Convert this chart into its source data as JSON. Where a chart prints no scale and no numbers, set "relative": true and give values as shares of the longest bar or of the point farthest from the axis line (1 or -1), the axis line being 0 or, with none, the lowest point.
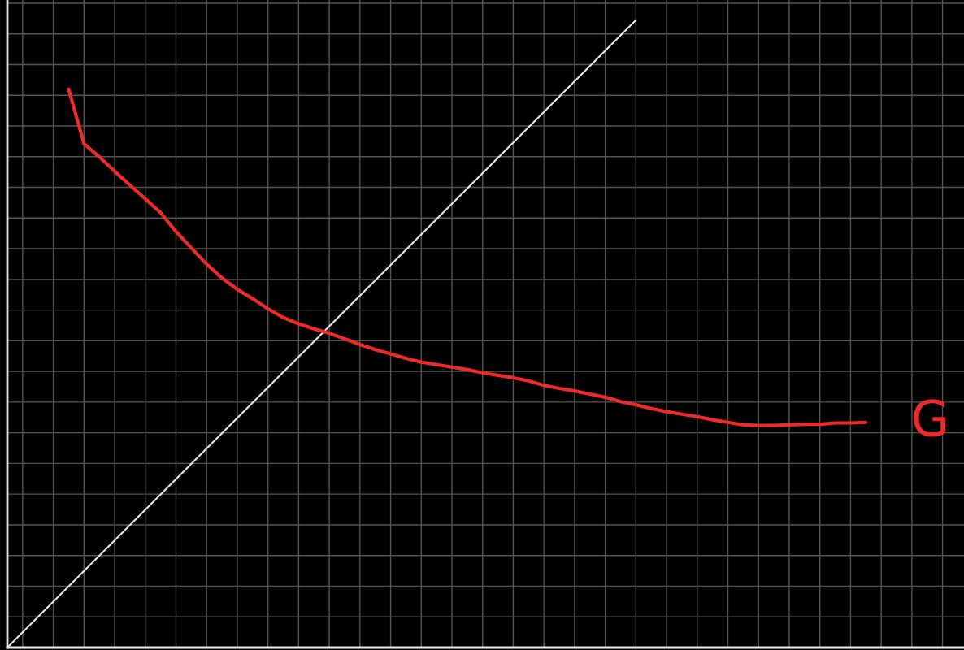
{
  "chart_data": {
    "type": "line",
    "relative": true,
    "grid": true,
    "tick_labels": false,
    "categories": [
      null,
      null,
      null,
      null,
      null,
      null,
      null,
      null,
      null,
      null,
      null,
      null,
      null,
      null,
      null,
      null,
      null,
      null,
      null,
      null,
      null,
      null,
      null,
      null,
      null,
      null,
      null,
      null,
      null,
      null,
      null,
      null,
      null,
      null,
      null,
      null,
      null,
      null,
      null,
      null,
      null,
      null,
      null,
      null,
      null,
      null,
      null,
      null,
      null,
      null,
      null,
      null,
      null,
      null,
      null,
      null,
      null,
      null,
      null,
      null,
      null,
      null,
      null
    ],
    "series": [
      {
        "color": "#e8e8e8",
        "values": [
          0.0,
          null,
          null,
          null,
          null,
          null,
          null,
          null,
          null,
          null,
          null,
          null,
          null,
          null,
          null,
          null,
          null,
          null,
          null,
          null,
          null,
          null,
          null,
          null,
          null,
          null,
          null,
          null,
          null,
          null,
          null,
          null,
          null,
          null,
          null,
          null,
          null,
          null,
          null,
          null,
          null,
          1.0,
          null,
          null,
          null,
          null,
          null,
          null,
          null,
          null,
          null,
          null,
          null,
          null,
          null,
          null,
          null,
          null,
          null,
          null,
          null,
          null,
          null
        ]
      },
      {
        "name": "G",
        "color": "#ee2a2a",
        "values": [
          null,
          null,
          null,
          null,
          0.89,
          0.803,
          0.782,
          0.759,
          0.737,
          0.715,
          0.693,
          0.663,
          0.637,
          0.611,
          0.589,
          0.571,
          0.556,
          0.54,
          0.526,
          0.516,
          0.508,
          0.501,
          0.492,
          0.483,
          0.475,
          0.468,
          0.461,
          0.455,
          0.451,
          0.447,
          0.443,
          0.438,
          0.434,
          0.43,
          0.425,
          0.418,
          0.413,
          0.409,
          0.404,
          0.399,
          0.392,
          0.387,
          0.381,
          0.376,
          0.372,
          0.368,
          0.363,
          0.359,
          0.355,
          0.354,
          0.354,
          0.355,
          0.356,
          0.356,
          0.358,
          0.358,
          0.359,
          null,
          null,
          null,
          null,
          null,
          null
        ]
      }
    ]
  }
}
